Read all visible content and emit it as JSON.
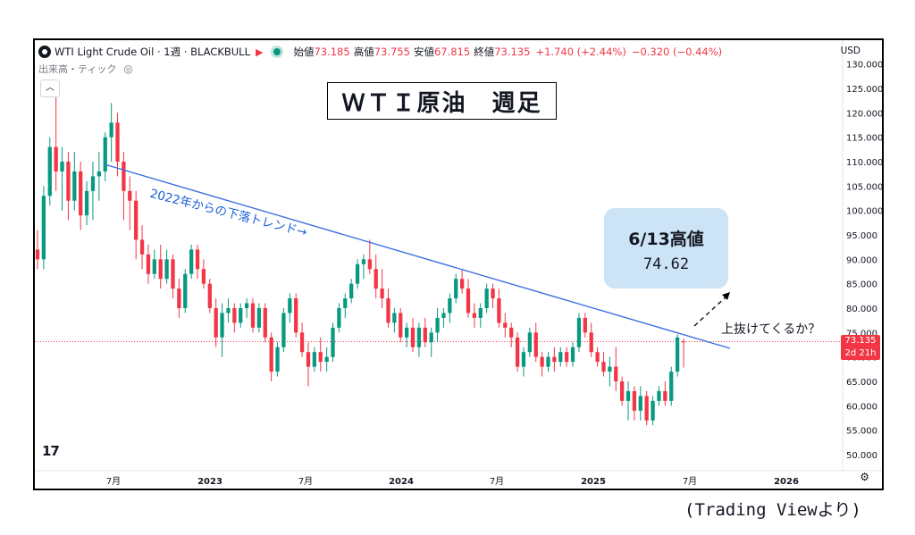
{
  "header": {
    "symbol": "WTI Light Crude Oil · 1週 · BLACKBULL",
    "open_label": "始値",
    "open": "73.185",
    "high_label": "高値",
    "high": "73.755",
    "low_label": "安値",
    "low": "67.815",
    "close_label": "終値",
    "close": "73.135",
    "change": "+1.740 (+2.44%)",
    "change2": "−0.320 (−0.44%)",
    "currency": "USD",
    "volume_label": "出来高・ティック"
  },
  "annotations": {
    "title": "ＷＴＩ原油　週足",
    "trend_label": "2022年からの下落トレンド→",
    "callout_line1": "6/13高値",
    "callout_line2": "74.62",
    "question": "上抜けてくるか？",
    "price_tag_value": "73.135",
    "price_tag_time": "2d 21h",
    "source": "(Trading Viewより)"
  },
  "colors": {
    "up": "#089981",
    "down": "#f23645",
    "trend": "#3a6fe0",
    "callout": "#cce4f6"
  },
  "icons": {
    "eye": "eye-off-icon",
    "collapse": "chevron-up-icon",
    "settings": "gear-icon",
    "logo": "tradingview-logo-icon"
  },
  "chart_data": {
    "type": "candlestick",
    "y_range": [
      50,
      130
    ],
    "y_ticks": [
      "50.000",
      "55.000",
      "60.000",
      "65.000",
      "70.000",
      "75.000",
      "80.000",
      "85.000",
      "90.000",
      "95.000",
      "100.000",
      "105.000",
      "110.000",
      "115.000",
      "120.000",
      "125.000",
      "130.000"
    ],
    "x_ticks": [
      "7月",
      "2023",
      "7月",
      "2024",
      "7月",
      "2025",
      "7月",
      "2026"
    ],
    "trendline": [
      [
        2022.48,
        109
      ],
      [
        2025.65,
        72
      ]
    ],
    "current_price": 73.135,
    "candles": [
      {
        "o": 92,
        "h": 96,
        "l": 88,
        "c": 90
      },
      {
        "o": 90,
        "h": 105,
        "l": 88,
        "c": 103
      },
      {
        "o": 103,
        "h": 115,
        "l": 101,
        "c": 113
      },
      {
        "o": 113,
        "h": 124,
        "l": 104,
        "c": 108
      },
      {
        "o": 108,
        "h": 113,
        "l": 100,
        "c": 110
      },
      {
        "o": 110,
        "h": 112,
        "l": 98,
        "c": 102
      },
      {
        "o": 102,
        "h": 112,
        "l": 100,
        "c": 108
      },
      {
        "o": 108,
        "h": 110,
        "l": 96,
        "c": 99
      },
      {
        "o": 99,
        "h": 106,
        "l": 97,
        "c": 104
      },
      {
        "o": 104,
        "h": 110,
        "l": 98,
        "c": 107
      },
      {
        "o": 107,
        "h": 112,
        "l": 102,
        "c": 108
      },
      {
        "o": 108,
        "h": 116,
        "l": 106,
        "c": 115
      },
      {
        "o": 115,
        "h": 122,
        "l": 110,
        "c": 118
      },
      {
        "o": 118,
        "h": 120,
        "l": 107,
        "c": 110
      },
      {
        "o": 110,
        "h": 112,
        "l": 98,
        "c": 104
      },
      {
        "o": 104,
        "h": 107,
        "l": 96,
        "c": 102
      },
      {
        "o": 102,
        "h": 104,
        "l": 90,
        "c": 94
      },
      {
        "o": 94,
        "h": 97,
        "l": 88,
        "c": 91
      },
      {
        "o": 91,
        "h": 93,
        "l": 85,
        "c": 87
      },
      {
        "o": 87,
        "h": 92,
        "l": 86,
        "c": 90
      },
      {
        "o": 90,
        "h": 93,
        "l": 84,
        "c": 86
      },
      {
        "o": 86,
        "h": 92,
        "l": 85,
        "c": 90
      },
      {
        "o": 90,
        "h": 91,
        "l": 82,
        "c": 84
      },
      {
        "o": 84,
        "h": 86,
        "l": 78,
        "c": 80
      },
      {
        "o": 80,
        "h": 88,
        "l": 79,
        "c": 87
      },
      {
        "o": 87,
        "h": 93,
        "l": 86,
        "c": 92
      },
      {
        "o": 92,
        "h": 93,
        "l": 86,
        "c": 88
      },
      {
        "o": 88,
        "h": 90,
        "l": 84,
        "c": 85
      },
      {
        "o": 85,
        "h": 86,
        "l": 79,
        "c": 80
      },
      {
        "o": 80,
        "h": 82,
        "l": 72,
        "c": 74
      },
      {
        "o": 74,
        "h": 81,
        "l": 70,
        "c": 79
      },
      {
        "o": 79,
        "h": 82,
        "l": 77,
        "c": 80
      },
      {
        "o": 80,
        "h": 81,
        "l": 75,
        "c": 77
      },
      {
        "o": 77,
        "h": 81,
        "l": 76,
        "c": 80
      },
      {
        "o": 80,
        "h": 82,
        "l": 78,
        "c": 81
      },
      {
        "o": 81,
        "h": 82,
        "l": 75,
        "c": 76
      },
      {
        "o": 76,
        "h": 81,
        "l": 75,
        "c": 80
      },
      {
        "o": 80,
        "h": 81,
        "l": 73,
        "c": 74
      },
      {
        "o": 74,
        "h": 75,
        "l": 65,
        "c": 67
      },
      {
        "o": 67,
        "h": 73,
        "l": 66,
        "c": 72
      },
      {
        "o": 72,
        "h": 80,
        "l": 71,
        "c": 79
      },
      {
        "o": 79,
        "h": 83,
        "l": 77,
        "c": 82
      },
      {
        "o": 82,
        "h": 83,
        "l": 74,
        "c": 75
      },
      {
        "o": 75,
        "h": 77,
        "l": 70,
        "c": 71
      },
      {
        "o": 71,
        "h": 73,
        "l": 64,
        "c": 68
      },
      {
        "o": 68,
        "h": 72,
        "l": 67,
        "c": 71
      },
      {
        "o": 71,
        "h": 74,
        "l": 67,
        "c": 69
      },
      {
        "o": 69,
        "h": 72,
        "l": 67,
        "c": 70
      },
      {
        "o": 70,
        "h": 77,
        "l": 69,
        "c": 76
      },
      {
        "o": 76,
        "h": 81,
        "l": 75,
        "c": 80
      },
      {
        "o": 80,
        "h": 83,
        "l": 78,
        "c": 82
      },
      {
        "o": 82,
        "h": 86,
        "l": 81,
        "c": 85
      },
      {
        "o": 85,
        "h": 90,
        "l": 84,
        "c": 89
      },
      {
        "o": 89,
        "h": 91,
        "l": 86,
        "c": 90
      },
      {
        "o": 90,
        "h": 94,
        "l": 87,
        "c": 88
      },
      {
        "o": 88,
        "h": 91,
        "l": 82,
        "c": 84
      },
      {
        "o": 84,
        "h": 88,
        "l": 80,
        "c": 82
      },
      {
        "o": 82,
        "h": 84,
        "l": 76,
        "c": 77
      },
      {
        "o": 77,
        "h": 80,
        "l": 75,
        "c": 79
      },
      {
        "o": 79,
        "h": 80,
        "l": 73,
        "c": 74
      },
      {
        "o": 74,
        "h": 77,
        "l": 72,
        "c": 76
      },
      {
        "o": 76,
        "h": 78,
        "l": 71,
        "c": 72
      },
      {
        "o": 72,
        "h": 77,
        "l": 70,
        "c": 76
      },
      {
        "o": 76,
        "h": 78,
        "l": 72,
        "c": 73
      },
      {
        "o": 73,
        "h": 76,
        "l": 70,
        "c": 75
      },
      {
        "o": 75,
        "h": 80,
        "l": 73,
        "c": 78
      },
      {
        "o": 78,
        "h": 80,
        "l": 76,
        "c": 79
      },
      {
        "o": 79,
        "h": 83,
        "l": 77,
        "c": 82
      },
      {
        "o": 82,
        "h": 87,
        "l": 81,
        "c": 86
      },
      {
        "o": 86,
        "h": 88,
        "l": 83,
        "c": 84
      },
      {
        "o": 84,
        "h": 86,
        "l": 78,
        "c": 79
      },
      {
        "o": 79,
        "h": 81,
        "l": 76,
        "c": 78
      },
      {
        "o": 78,
        "h": 81,
        "l": 76,
        "c": 80
      },
      {
        "o": 80,
        "h": 85,
        "l": 79,
        "c": 84
      },
      {
        "o": 84,
        "h": 85,
        "l": 80,
        "c": 82
      },
      {
        "o": 82,
        "h": 84,
        "l": 76,
        "c": 77
      },
      {
        "o": 77,
        "h": 79,
        "l": 74,
        "c": 76
      },
      {
        "o": 76,
        "h": 77,
        "l": 72,
        "c": 74
      },
      {
        "o": 74,
        "h": 75,
        "l": 67,
        "c": 68
      },
      {
        "o": 68,
        "h": 72,
        "l": 66,
        "c": 71
      },
      {
        "o": 71,
        "h": 76,
        "l": 70,
        "c": 75
      },
      {
        "o": 75,
        "h": 77,
        "l": 69,
        "c": 70
      },
      {
        "o": 70,
        "h": 71,
        "l": 66,
        "c": 68
      },
      {
        "o": 68,
        "h": 71,
        "l": 67,
        "c": 70
      },
      {
        "o": 70,
        "h": 72,
        "l": 67,
        "c": 69
      },
      {
        "o": 69,
        "h": 72,
        "l": 68,
        "c": 71
      },
      {
        "o": 71,
        "h": 72,
        "l": 68,
        "c": 69
      },
      {
        "o": 69,
        "h": 73,
        "l": 68,
        "c": 72
      },
      {
        "o": 72,
        "h": 79,
        "l": 71,
        "c": 78
      },
      {
        "o": 78,
        "h": 79,
        "l": 74,
        "c": 75
      },
      {
        "o": 75,
        "h": 77,
        "l": 70,
        "c": 71
      },
      {
        "o": 71,
        "h": 72,
        "l": 68,
        "c": 69
      },
      {
        "o": 69,
        "h": 71,
        "l": 66,
        "c": 67
      },
      {
        "o": 67,
        "h": 70,
        "l": 64,
        "c": 68
      },
      {
        "o": 68,
        "h": 72,
        "l": 63,
        "c": 65
      },
      {
        "o": 65,
        "h": 66,
        "l": 60,
        "c": 61
      },
      {
        "o": 61,
        "h": 65,
        "l": 57,
        "c": 63
      },
      {
        "o": 63,
        "h": 64,
        "l": 57,
        "c": 59
      },
      {
        "o": 59,
        "h": 64,
        "l": 57,
        "c": 62
      },
      {
        "o": 62,
        "h": 63,
        "l": 56,
        "c": 57
      },
      {
        "o": 57,
        "h": 62,
        "l": 56,
        "c": 61
      },
      {
        "o": 61,
        "h": 64,
        "l": 60,
        "c": 63
      },
      {
        "o": 63,
        "h": 65,
        "l": 60,
        "c": 61
      },
      {
        "o": 61,
        "h": 68,
        "l": 60,
        "c": 67
      },
      {
        "o": 67,
        "h": 74.62,
        "l": 66,
        "c": 74
      },
      {
        "o": 73.185,
        "h": 73.755,
        "l": 67.815,
        "c": 73.135
      }
    ]
  }
}
